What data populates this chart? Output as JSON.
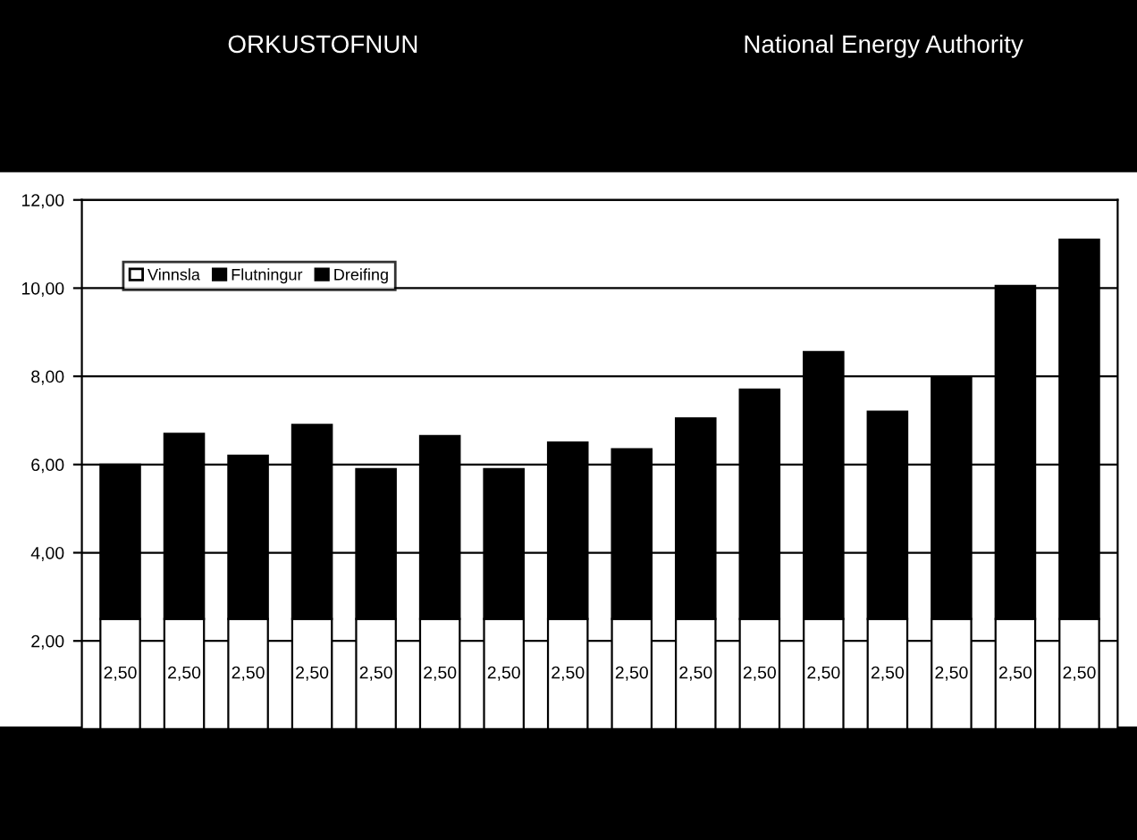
{
  "chart_data": {
    "type": "bar",
    "stacked": true,
    "title": "ORKUSTOFNUN",
    "subtitle": "National Energy Authority",
    "categories": [
      null,
      null,
      null,
      null,
      null,
      null,
      null,
      null,
      null,
      null,
      null,
      null,
      null,
      null,
      null,
      null
    ],
    "series": [
      {
        "name": "Vinnsla",
        "color": "#ffffff",
        "values": [
          2.5,
          2.5,
          2.5,
          2.5,
          2.5,
          2.5,
          2.5,
          2.5,
          2.5,
          2.5,
          2.5,
          2.5,
          2.5,
          2.5,
          2.5,
          2.5
        ],
        "value_labels": [
          "2,50",
          "2,50",
          "2,50",
          "2,50",
          "2,50",
          "2,50",
          "2,50",
          "2,50",
          "2,50",
          "2,50",
          "2,50",
          "2,50",
          "2,50",
          "2,50",
          "2,50",
          "2,50"
        ]
      },
      {
        "name": "Flutningur",
        "color": "#000000",
        "values": [
          null,
          null,
          null,
          null,
          null,
          null,
          null,
          null,
          null,
          null,
          null,
          null,
          null,
          null,
          null,
          null
        ]
      },
      {
        "name": "Dreifing",
        "color": "#000000",
        "values": [
          3.5,
          4.2,
          3.7,
          4.4,
          3.4,
          4.15,
          3.4,
          4.0,
          3.85,
          4.55,
          5.2,
          6.05,
          4.7,
          5.5,
          7.55,
          8.6
        ]
      }
    ],
    "ylim": [
      0,
      12
    ],
    "yticks": [
      {
        "value": 2,
        "label": "2,00"
      },
      {
        "value": 4,
        "label": "4,00"
      },
      {
        "value": 6,
        "label": "6,00"
      },
      {
        "value": 8,
        "label": "8,00"
      },
      {
        "value": 10,
        "label": "10,00"
      },
      {
        "value": 12,
        "label": "12,00"
      }
    ],
    "grid": "y",
    "legend": "top left"
  }
}
